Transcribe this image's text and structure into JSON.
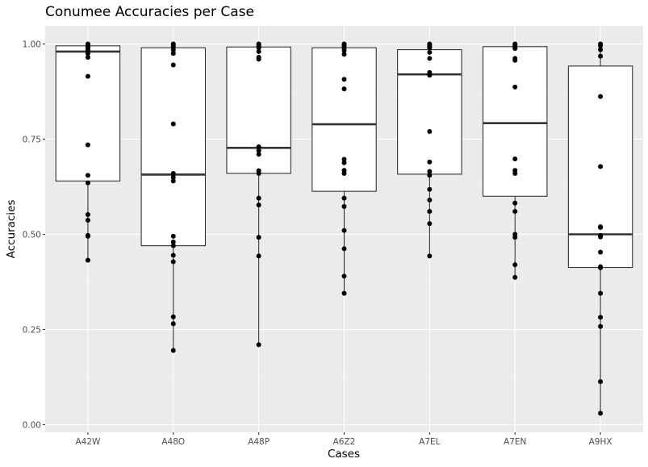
{
  "chart_data": {
    "type": "boxplot",
    "title": "Conumee Accuracies per Case",
    "xlabel": "Cases",
    "ylabel": "Accuracies",
    "ylim": [
      -0.03,
      1.055
    ],
    "yticks": [
      0.0,
      0.25,
      0.5,
      0.75,
      1.0
    ],
    "ytick_labels": [
      "0.00",
      "0.25",
      "0.50",
      "0.75",
      "1.00"
    ],
    "grid": true,
    "categories": [
      "A42W",
      "A48O",
      "A48P",
      "A6Z2",
      "A7EL",
      "A7EN",
      "A9HX"
    ],
    "boxes": [
      {
        "case": "A42W",
        "min": 0.43,
        "q1": 0.64,
        "median": 0.98,
        "q3": 0.995,
        "max": 1.0
      },
      {
        "case": "A48O",
        "min": 0.195,
        "q1": 0.47,
        "median": 0.657,
        "q3": 0.99,
        "max": 1.0
      },
      {
        "case": "A48P",
        "min": 0.21,
        "q1": 0.66,
        "median": 0.727,
        "q3": 0.992,
        "max": 1.0
      },
      {
        "case": "A6Z2",
        "min": 0.345,
        "q1": 0.613,
        "median": 0.789,
        "q3": 0.99,
        "max": 1.0
      },
      {
        "case": "A7EL",
        "min": 0.443,
        "q1": 0.658,
        "median": 0.92,
        "q3": 0.985,
        "max": 1.0
      },
      {
        "case": "A7EN",
        "min": 0.387,
        "q1": 0.6,
        "median": 0.792,
        "q3": 0.993,
        "max": 1.0
      },
      {
        "case": "A9HX",
        "min": 0.03,
        "q1": 0.413,
        "median": 0.5,
        "q3": 0.942,
        "max": 1.0
      }
    ],
    "points": [
      {
        "case": "A42W",
        "values": [
          1.0,
          0.997,
          0.993,
          0.99,
          0.985,
          0.975,
          0.965,
          0.915,
          0.735,
          0.655,
          0.635,
          0.552,
          0.537,
          0.497,
          0.495,
          0.432
        ]
      },
      {
        "case": "A48O",
        "values": [
          1.0,
          0.997,
          0.993,
          0.985,
          0.975,
          0.945,
          0.79,
          0.66,
          0.65,
          0.64,
          0.495,
          0.48,
          0.47,
          0.445,
          0.428,
          0.283,
          0.265,
          0.195
        ]
      },
      {
        "case": "A48P",
        "values": [
          1.0,
          0.997,
          0.993,
          0.99,
          0.98,
          0.965,
          0.96,
          0.73,
          0.72,
          0.71,
          0.667,
          0.66,
          0.595,
          0.577,
          0.492,
          0.443,
          0.21
        ]
      },
      {
        "case": "A6Z2",
        "values": [
          1.0,
          0.997,
          0.993,
          0.99,
          0.983,
          0.973,
          0.907,
          0.882,
          0.697,
          0.688,
          0.668,
          0.66,
          0.595,
          0.573,
          0.51,
          0.462,
          0.39,
          0.345
        ]
      },
      {
        "case": "A7EL",
        "values": [
          1.0,
          0.997,
          0.993,
          0.99,
          0.978,
          0.962,
          0.925,
          0.918,
          0.77,
          0.69,
          0.665,
          0.655,
          0.618,
          0.59,
          0.56,
          0.528,
          0.443
        ]
      },
      {
        "case": "A7EN",
        "values": [
          1.0,
          0.997,
          0.993,
          0.99,
          0.988,
          0.962,
          0.957,
          0.887,
          0.698,
          0.668,
          0.66,
          0.582,
          0.56,
          0.5,
          0.492,
          0.42,
          0.387
        ]
      },
      {
        "case": "A9HX",
        "values": [
          1.0,
          0.995,
          0.985,
          0.968,
          0.862,
          0.678,
          0.52,
          0.518,
          0.497,
          0.493,
          0.453,
          0.415,
          0.412,
          0.345,
          0.282,
          0.258,
          0.113,
          0.03
        ]
      }
    ]
  }
}
